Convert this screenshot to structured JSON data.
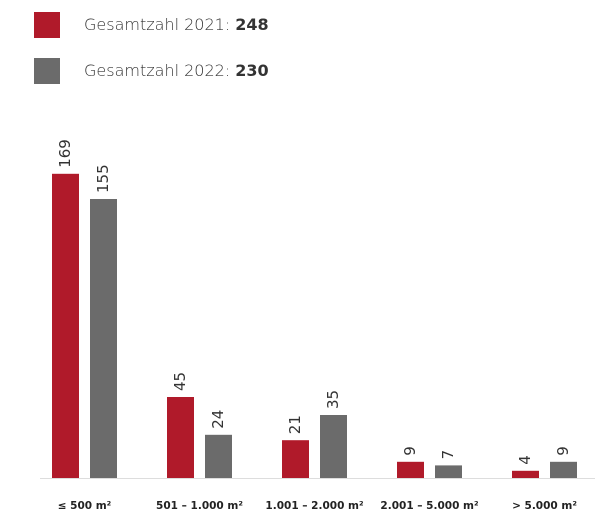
{
  "chart_data": {
    "type": "bar",
    "categories": [
      "≤ 500 m²",
      "501 – 1.000 m²",
      "1.001 – 2.000 m²",
      "2.001 – 5.000 m²",
      "> 5.000 m²"
    ],
    "series": [
      {
        "name": "Gesamtzahl 2021:",
        "total": 248,
        "color": "#b01a2a",
        "values": [
          169,
          45,
          21,
          9,
          4
        ]
      },
      {
        "name": "Gesamtzahl 2022:",
        "total": 230,
        "color": "#6b6b6b",
        "values": [
          155,
          24,
          35,
          7,
          9
        ]
      }
    ]
  }
}
